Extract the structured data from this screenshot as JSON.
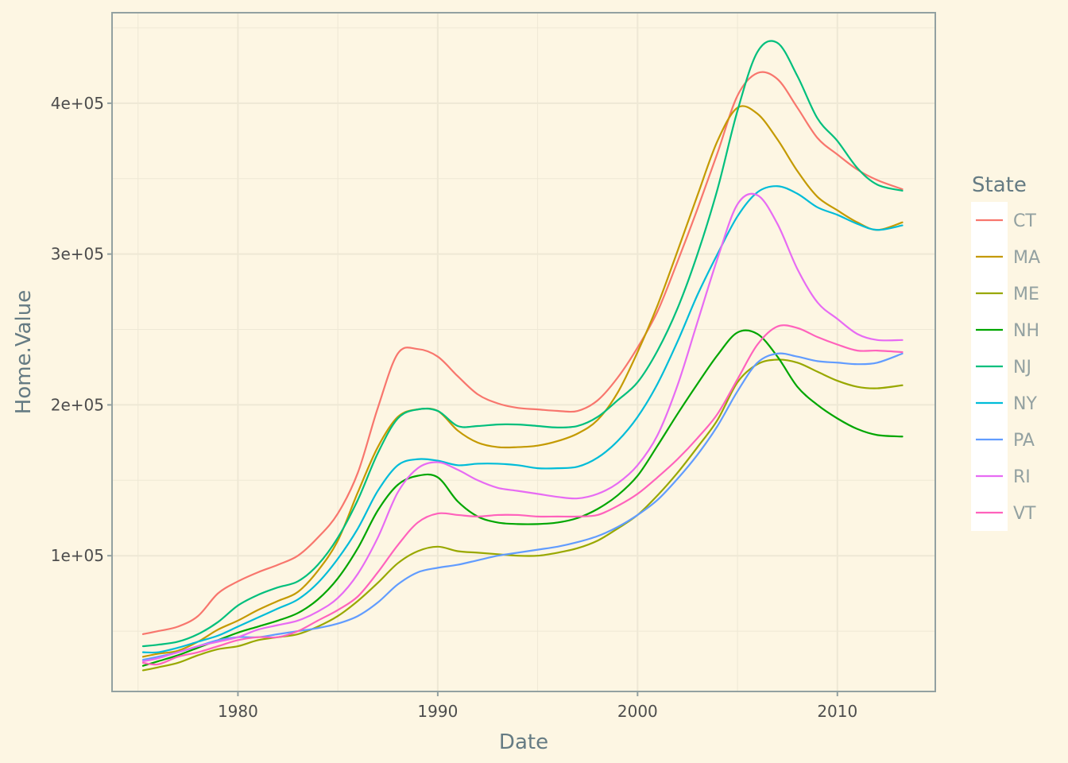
{
  "chart_data": {
    "type": "line",
    "xlabel": "Date",
    "ylabel": "Home.Value",
    "xlim": [
      1973.7,
      2014.9
    ],
    "ylim": [
      10000,
      460000
    ],
    "x_ticks": [
      1980,
      1990,
      2000,
      2010
    ],
    "x_tick_labels": [
      "1980",
      "1990",
      "2000",
      "2010"
    ],
    "y_ticks": [
      100000,
      200000,
      300000,
      400000
    ],
    "y_tick_labels": [
      "1e+05",
      "2e+05",
      "3e+05",
      "4e+05"
    ],
    "grid": true,
    "legend": {
      "title": "State",
      "placement": "right"
    },
    "x": [
      1975.25,
      1976,
      1977,
      1978,
      1979,
      1980,
      1981,
      1982,
      1983,
      1984,
      1985,
      1986,
      1987,
      1988,
      1989,
      1990,
      1991,
      1992,
      1993,
      1994,
      1995,
      1996,
      1997,
      1998,
      1999,
      2000,
      2001,
      2002,
      2003,
      2004,
      2005,
      2006,
      2007,
      2008,
      2009,
      2010,
      2011,
      2012,
      2013.25
    ],
    "series": [
      {
        "name": "CT",
        "color": "#F8766D",
        "values": [
          48000,
          50000,
          53000,
          60000,
          75000,
          83000,
          89000,
          94000,
          100000,
          112000,
          128000,
          155000,
          198000,
          234000,
          237000,
          232000,
          219000,
          207000,
          201000,
          198000,
          197000,
          196000,
          196000,
          203000,
          218000,
          238000,
          262000,
          295000,
          330000,
          367000,
          405000,
          420000,
          416000,
          397000,
          377000,
          366000,
          356000,
          349000,
          343000
        ]
      },
      {
        "name": "MA",
        "color": "#C49A00",
        "values": [
          33000,
          35000,
          37000,
          43000,
          51000,
          57000,
          64000,
          70000,
          76000,
          90000,
          110000,
          142000,
          172000,
          192000,
          197000,
          196000,
          183000,
          175000,
          172000,
          172000,
          173000,
          176000,
          181000,
          190000,
          208000,
          235000,
          266000,
          302000,
          339000,
          375000,
          397000,
          393000,
          376000,
          355000,
          338000,
          329000,
          321000,
          316000,
          321000
        ]
      },
      {
        "name": "ME",
        "color": "#99A800",
        "values": [
          24000,
          26000,
          29000,
          34000,
          38000,
          40000,
          44000,
          46000,
          48000,
          53000,
          60000,
          70000,
          82000,
          95000,
          103000,
          106000,
          103000,
          102000,
          101000,
          100000,
          100000,
          102000,
          105000,
          110000,
          118000,
          127000,
          140000,
          155000,
          172000,
          190000,
          215000,
          227000,
          230000,
          228000,
          222000,
          216000,
          212000,
          211000,
          213000
        ]
      },
      {
        "name": "NH",
        "color": "#00A600",
        "values": [
          27000,
          30000,
          34000,
          39000,
          44000,
          49000,
          53000,
          57000,
          62000,
          71000,
          85000,
          105000,
          130000,
          147000,
          153000,
          152000,
          136000,
          126000,
          122000,
          121000,
          121000,
          122000,
          125000,
          131000,
          140000,
          153000,
          173000,
          194000,
          214000,
          233000,
          248000,
          247000,
          232000,
          212000,
          200000,
          191000,
          184000,
          180000,
          179000
        ]
      },
      {
        "name": "NJ",
        "color": "#00BF7D",
        "values": [
          40000,
          41000,
          43000,
          48000,
          56000,
          67000,
          74000,
          79000,
          83000,
          94000,
          112000,
          137000,
          168000,
          191000,
          197000,
          196000,
          186000,
          186000,
          187000,
          187000,
          186000,
          185000,
          186000,
          192000,
          203000,
          215000,
          236000,
          264000,
          300000,
          343000,
          395000,
          434000,
          440000,
          418000,
          390000,
          375000,
          357000,
          346000,
          342000
        ]
      },
      {
        "name": "NY",
        "color": "#00BCD8",
        "values": [
          36000,
          36000,
          39000,
          43000,
          47000,
          53000,
          59000,
          65000,
          71000,
          82000,
          98000,
          118000,
          143000,
          160000,
          164000,
          163000,
          160000,
          161000,
          161000,
          160000,
          158000,
          158000,
          159000,
          165000,
          176000,
          192000,
          214000,
          242000,
          273000,
          300000,
          325000,
          341000,
          345000,
          340000,
          331000,
          326000,
          320000,
          316000,
          319000
        ]
      },
      {
        "name": "PA",
        "color": "#619CFF",
        "values": [
          31000,
          33000,
          36000,
          40000,
          44000,
          46000,
          46000,
          48000,
          50000,
          52000,
          55000,
          60000,
          69000,
          81000,
          89000,
          92000,
          94000,
          97000,
          100000,
          102000,
          104000,
          106000,
          109000,
          113000,
          119000,
          127000,
          137000,
          151000,
          167000,
          186000,
          209000,
          228000,
          234000,
          232000,
          229000,
          228000,
          227000,
          228000,
          234000
        ]
      },
      {
        "name": "RI",
        "color": "#E76BF3",
        "values": [
          30000,
          32000,
          36000,
          40000,
          43000,
          46000,
          51000,
          54000,
          57000,
          63000,
          72000,
          88000,
          112000,
          142000,
          158000,
          162000,
          157000,
          150000,
          145000,
          143000,
          141000,
          139000,
          138000,
          141000,
          148000,
          160000,
          180000,
          213000,
          255000,
          297000,
          333000,
          339000,
          320000,
          290000,
          268000,
          257000,
          247000,
          243000,
          243000
        ]
      },
      {
        "name": "VT",
        "color": "#FF62BC",
        "values": [
          29000,
          28000,
          33000,
          36000,
          40000,
          44000,
          46000,
          46000,
          50000,
          57000,
          64000,
          73000,
          89000,
          107000,
          122000,
          128000,
          127000,
          126000,
          127000,
          127000,
          126000,
          126000,
          126000,
          127000,
          133000,
          141000,
          152000,
          164000,
          178000,
          194000,
          217000,
          240000,
          252000,
          251000,
          245000,
          240000,
          236000,
          236000,
          235000
        ]
      }
    ]
  }
}
